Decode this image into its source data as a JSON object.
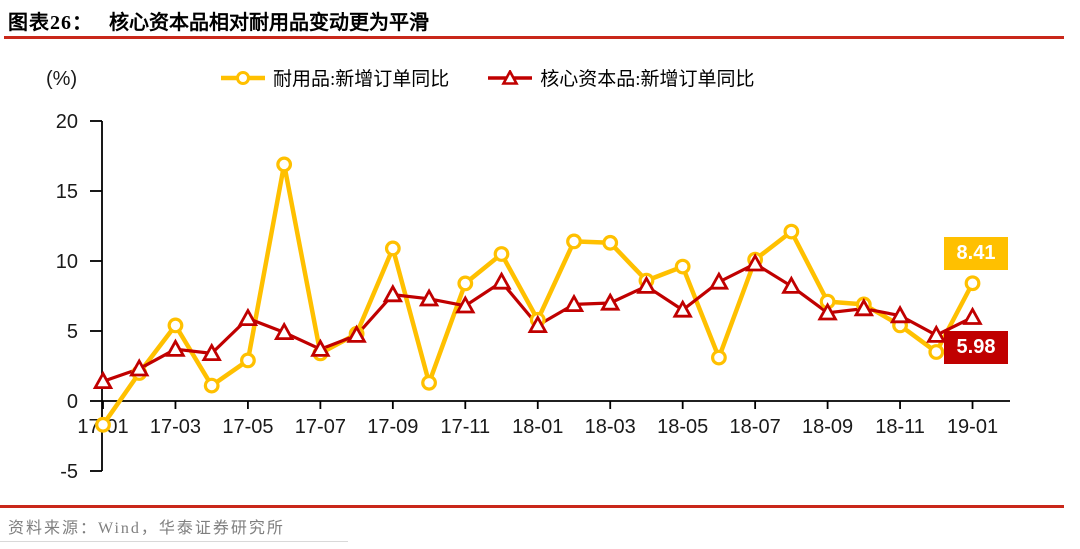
{
  "header": {
    "label": "图表26：",
    "title": "核心资本品相对耐用品变动更为平滑"
  },
  "palette": {
    "durable": "#FFC000",
    "core": "#C00000",
    "rule": "#C9281A",
    "axis": "#000000",
    "tick_text": "#1a1a1a",
    "source_text": "#7f7f7f"
  },
  "legend": [
    {
      "label": "耐用品:新增订单同比",
      "marker": "circle",
      "color": "#FFC000"
    },
    {
      "label": "核心资本品:新增订单同比",
      "marker": "triangle",
      "color": "#C00000"
    }
  ],
  "end_labels": [
    {
      "value": "8.41",
      "series": "耐用品:新增订单同比",
      "color": "#FFC000"
    },
    {
      "value": "5.98",
      "series": "核心资本品:新增订单同比",
      "color": "#C00000"
    }
  ],
  "footer": {
    "source": "资料来源：Wind，华泰证券研究所"
  },
  "chart_data": {
    "type": "line",
    "title": "核心资本品相对耐用品变动更为平滑",
    "unit": "(%)",
    "grid": false,
    "legend_position": "top",
    "ylim": [
      -5,
      20
    ],
    "y_ticks": [
      20,
      15,
      10,
      5,
      0,
      -5
    ],
    "categories": [
      "17-01",
      "17-02",
      "17-03",
      "17-04",
      "17-05",
      "17-06",
      "17-07",
      "17-08",
      "17-09",
      "17-10",
      "17-11",
      "17-12",
      "18-01",
      "18-02",
      "18-03",
      "18-04",
      "18-05",
      "18-06",
      "18-07",
      "18-08",
      "18-09",
      "18-10",
      "18-11",
      "18-12",
      "19-01"
    ],
    "x_tick_labels": [
      "17-01",
      "17-03",
      "17-05",
      "17-07",
      "17-09",
      "17-11",
      "18-01",
      "18-03",
      "18-05",
      "18-07",
      "18-09",
      "18-11",
      "19-01"
    ],
    "series": [
      {
        "name": "耐用品:新增订单同比",
        "color": "#FFC000",
        "marker": "circle",
        "values": [
          -1.7,
          2.0,
          5.4,
          1.1,
          2.9,
          16.9,
          3.4,
          4.8,
          10.9,
          1.3,
          8.4,
          10.5,
          5.8,
          11.4,
          11.3,
          8.6,
          9.6,
          3.1,
          10.1,
          12.1,
          7.1,
          6.9,
          5.4,
          3.5,
          8.41
        ]
      },
      {
        "name": "核心资本品:新增订单同比",
        "color": "#C00000",
        "marker": "triangle",
        "values": [
          1.4,
          2.3,
          3.7,
          3.4,
          5.9,
          4.9,
          3.7,
          4.7,
          7.6,
          7.3,
          6.8,
          8.5,
          5.4,
          6.9,
          7.0,
          8.2,
          6.5,
          8.5,
          9.8,
          8.2,
          6.3,
          6.6,
          6.1,
          4.7,
          5.98
        ]
      }
    ]
  }
}
